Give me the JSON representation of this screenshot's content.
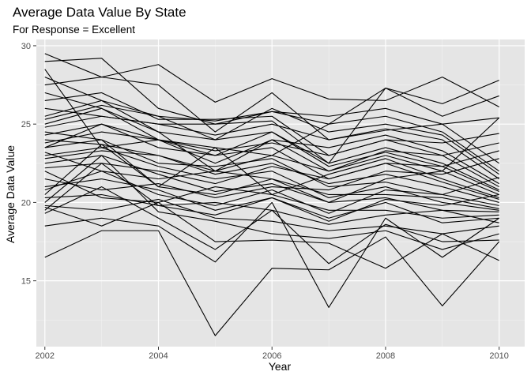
{
  "chart_data": {
    "type": "line",
    "title": "Average Data Value By State",
    "subtitle": "For Response = Excellent",
    "xlabel": "Year",
    "ylabel": "Average Data Value",
    "x": [
      2002,
      2003,
      2004,
      2005,
      2006,
      2007,
      2008,
      2009,
      2010
    ],
    "x_ticks": [
      "2002",
      "2004",
      "2006",
      "2008",
      "2010"
    ],
    "y_ticks": [
      "15",
      "20",
      "25",
      "30"
    ],
    "xlim": [
      2001.85,
      2010.45
    ],
    "ylim": [
      10.8,
      30.4
    ],
    "grid": true,
    "legend": "none",
    "colors": {
      "panel": "#e5e5e5",
      "grid_major": "#ffffff",
      "grid_minor": "#f2f2f2",
      "line": "#000000",
      "tick": "#333333"
    },
    "series": [
      {
        "values": [
          16.5,
          18.2,
          18.2,
          11.5,
          15.8,
          15.7,
          17.8,
          13.4,
          17.5
        ]
      },
      {
        "values": [
          18.5,
          19.0,
          18.5,
          16.2,
          20.0,
          13.3,
          19.0,
          16.5,
          19.0
        ]
      },
      {
        "values": [
          19.7,
          18.5,
          20.0,
          17.5,
          17.6,
          17.4,
          15.8,
          18.0,
          16.3
        ]
      },
      {
        "values": [
          19.3,
          21.0,
          19.0,
          17.0,
          19.5,
          16.1,
          18.6,
          17.5,
          17.6
        ]
      },
      {
        "values": [
          20.0,
          23.0,
          19.4,
          18.8,
          18.0,
          17.7,
          18.2,
          17.0,
          18.0
        ]
      },
      {
        "values": [
          19.8,
          19.5,
          20.2,
          19.0,
          18.8,
          18.2,
          18.5,
          18.0,
          18.5
        ]
      },
      {
        "values": [
          20.3,
          20.5,
          19.8,
          20.0,
          19.5,
          18.6,
          19.2,
          19.5,
          18.7
        ]
      },
      {
        "values": [
          21.0,
          21.5,
          20.8,
          19.5,
          20.3,
          19.0,
          20.0,
          18.7,
          19.0
        ]
      },
      {
        "values": [
          22.0,
          20.3,
          20.0,
          21.0,
          20.5,
          19.5,
          19.5,
          19.0,
          19.2
        ]
      },
      {
        "values": [
          22.5,
          23.0,
          21.8,
          20.7,
          21.2,
          20.0,
          20.3,
          19.5,
          19.4
        ]
      },
      {
        "values": [
          23.0,
          23.5,
          22.3,
          21.5,
          22.0,
          20.3,
          21.0,
          20.0,
          19.5
        ]
      },
      {
        "values": [
          23.2,
          22.0,
          21.5,
          22.0,
          21.5,
          20.5,
          20.5,
          20.3,
          19.6
        ]
      },
      {
        "values": [
          23.5,
          24.0,
          22.5,
          22.3,
          22.8,
          21.0,
          21.3,
          20.5,
          19.8
        ]
      },
      {
        "values": [
          24.0,
          23.7,
          23.0,
          21.8,
          22.5,
          21.2,
          21.8,
          21.0,
          20.0
        ]
      },
      {
        "values": [
          24.3,
          25.0,
          23.5,
          23.0,
          23.5,
          21.5,
          22.5,
          21.3,
          20.2
        ]
      },
      {
        "values": [
          24.5,
          24.0,
          21.0,
          23.5,
          20.5,
          21.8,
          22.8,
          21.5,
          20.3
        ]
      },
      {
        "values": [
          25.0,
          26.0,
          24.0,
          22.5,
          24.0,
          22.0,
          23.0,
          22.0,
          20.5
        ]
      },
      {
        "values": [
          25.5,
          26.5,
          24.5,
          24.0,
          24.5,
          22.3,
          23.2,
          22.3,
          20.7
        ]
      },
      {
        "values": [
          26.0,
          25.5,
          25.0,
          25.0,
          25.2,
          22.5,
          23.5,
          22.5,
          20.8
        ]
      },
      {
        "values": [
          26.5,
          27.0,
          25.3,
          25.3,
          25.5,
          23.0,
          24.0,
          23.0,
          21.0
        ]
      },
      {
        "values": [
          27.0,
          26.0,
          24.5,
          22.0,
          24.0,
          23.5,
          24.3,
          23.3,
          21.2
        ]
      },
      {
        "values": [
          27.5,
          28.0,
          27.5,
          24.5,
          27.0,
          24.0,
          24.7,
          24.0,
          21.5
        ]
      },
      {
        "values": [
          28.0,
          26.5,
          25.5,
          24.0,
          26.0,
          24.5,
          25.0,
          24.3,
          21.8
        ]
      },
      {
        "values": [
          28.5,
          23.5,
          24.0,
          23.5,
          23.0,
          25.0,
          25.5,
          24.5,
          22.0
        ]
      },
      {
        "values": [
          29.0,
          29.2,
          26.0,
          25.0,
          25.8,
          25.5,
          26.0,
          25.0,
          22.5
        ]
      },
      {
        "values": [
          29.5,
          28.0,
          28.8,
          26.4,
          27.9,
          26.6,
          26.5,
          28.0,
          26.1
        ]
      },
      {
        "values": [
          21.5,
          20.8,
          21.2,
          20.3,
          21.0,
          20.8,
          22.0,
          21.8,
          22.8
        ]
      },
      {
        "values": [
          22.2,
          22.5,
          22.0,
          21.2,
          22.3,
          21.5,
          22.5,
          22.3,
          23.3
        ]
      },
      {
        "values": [
          22.8,
          23.3,
          23.0,
          22.0,
          23.0,
          22.0,
          23.3,
          23.0,
          23.8
        ]
      },
      {
        "values": [
          23.8,
          24.5,
          24.0,
          23.3,
          23.8,
          23.0,
          24.0,
          23.8,
          24.4
        ]
      },
      {
        "values": [
          24.8,
          25.5,
          25.0,
          24.3,
          25.0,
          24.0,
          24.6,
          25.0,
          25.4
        ]
      },
      {
        "values": [
          25.3,
          26.2,
          25.5,
          25.2,
          25.8,
          25.0,
          27.3,
          26.3,
          27.8
        ]
      },
      {
        "values": [
          23.5,
          25.0,
          24.0,
          23.0,
          24.5,
          22.5,
          27.3,
          25.5,
          26.8
        ]
      },
      {
        "values": [
          20.8,
          22.0,
          20.5,
          19.8,
          20.8,
          19.3,
          20.8,
          20.5,
          21.6
        ]
      },
      {
        "values": [
          20.5,
          23.7,
          21.0,
          20.5,
          21.5,
          20.0,
          21.5,
          22.0,
          25.4
        ]
      },
      {
        "values": [
          19.5,
          22.5,
          19.8,
          19.2,
          20.3,
          18.8,
          20.2,
          19.8,
          20.5
        ]
      }
    ]
  }
}
